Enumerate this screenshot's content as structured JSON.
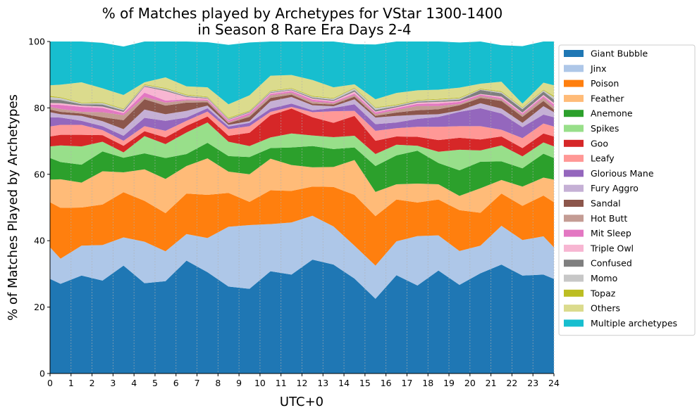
{
  "chart_data": {
    "type": "area",
    "stacked": true,
    "title_lines": [
      "% of Matches played by Archetypes for VStar 1300-1400",
      "in Season 8 Rare Era Days 2-4"
    ],
    "xlabel": "UTC+0",
    "ylabel": "% of Matches Played by Archetypes",
    "xlim": [
      0,
      24
    ],
    "ylim": [
      0,
      100
    ],
    "xticks": [
      "0",
      "1",
      "2",
      "3",
      "4",
      "5",
      "6",
      "7",
      "8",
      "9",
      "10",
      "11",
      "12",
      "13",
      "14",
      "15",
      "16",
      "17",
      "18",
      "19",
      "20",
      "21",
      "22",
      "23",
      "24"
    ],
    "yticks": [
      "0",
      "20",
      "40",
      "60",
      "80",
      "100"
    ],
    "grid": "vertical-dashed",
    "legend_position": "outside-right",
    "x": [
      0,
      0.5,
      1.5,
      2.5,
      3.5,
      4.5,
      5.5,
      6.5,
      7.5,
      8.5,
      9.5,
      10.5,
      11.5,
      12.5,
      13.5,
      14.5,
      15.5,
      16.5,
      17.5,
      18.5,
      19.5,
      20.5,
      21.5,
      22.5,
      23.5,
      24
    ],
    "series": [
      {
        "name": "Giant Bubble",
        "color": "#1f77b4",
        "values": [
          28.5,
          27,
          29.5,
          28,
          32.5,
          27.2,
          27.8,
          34,
          30.5,
          26.2,
          25.5,
          30.8,
          29.8,
          34.3,
          32.8,
          28.6,
          22.5,
          29.6,
          26.5,
          31,
          26.7,
          30.2,
          32.8,
          29.5,
          29.8,
          28.5
        ]
      },
      {
        "name": "Jinx",
        "color": "#aec7e8",
        "values": [
          9.5,
          7.6,
          9,
          10.7,
          8.5,
          12.5,
          9,
          8,
          10.3,
          18,
          19.2,
          14.2,
          15.7,
          13.2,
          11.5,
          9.9,
          10,
          10.2,
          14.9,
          10.6,
          10.2,
          8.3,
          11.7,
          10.7,
          11.5,
          9.5
        ]
      },
      {
        "name": "Poison",
        "color": "#ff7f0e",
        "values": [
          13.6,
          15.3,
          11.5,
          12.2,
          13.6,
          12.3,
          11.5,
          12.2,
          13,
          10.2,
          7,
          10.2,
          9.5,
          8.8,
          11.9,
          15.3,
          14.9,
          12.6,
          10.1,
          10.8,
          12.3,
          9.9,
          9.7,
          10.3,
          12.3,
          13.6
        ]
      },
      {
        "name": "Feather",
        "color": "#ffbb78",
        "values": [
          6.8,
          8.6,
          7.5,
          10,
          6,
          9.5,
          10.3,
          8.3,
          11,
          6.4,
          8.3,
          9.5,
          7.8,
          5.8,
          6,
          10.5,
          7.3,
          4.6,
          5.7,
          4.6,
          4.3,
          7.4,
          4.1,
          5.8,
          5.4,
          6.8
        ]
      },
      {
        "name": "Anemone",
        "color": "#2ca02c",
        "values": [
          6.5,
          5.2,
          5.4,
          6,
          4.4,
          4.8,
          6.3,
          3.6,
          4.7,
          4.7,
          5.2,
          3.2,
          5.3,
          6.4,
          5.4,
          3.8,
          7.8,
          8.7,
          9.9,
          6.4,
          7.7,
          8,
          5.6,
          5.5,
          7.2,
          6.5
        ]
      },
      {
        "name": "Spikes",
        "color": "#98df8a",
        "values": [
          3.5,
          5,
          5.5,
          2.9,
          1.6,
          5.2,
          4.2,
          6.5,
          6.1,
          4.3,
          3.3,
          3.2,
          4.2,
          3.2,
          3.6,
          3.5,
          3.6,
          3.2,
          1.5,
          3.4,
          6.2,
          3.4,
          4.8,
          3.6,
          3.4,
          3.5
        ]
      },
      {
        "name": "Goo",
        "color": "#d62728",
        "values": [
          3,
          3.2,
          3.5,
          2,
          2,
          1.5,
          2,
          2,
          1.8,
          1.8,
          4,
          6.7,
          7.5,
          5.5,
          4.3,
          6,
          4,
          2.5,
          2.7,
          3.5,
          3.6,
          3.3,
          2.7,
          2.5,
          2.7,
          3
        ]
      },
      {
        "name": "Leafy",
        "color": "#ff9896",
        "values": [
          3,
          3,
          3,
          1.5,
          1.5,
          1.5,
          2,
          1.5,
          1.5,
          2,
          2,
          1,
          0.5,
          1.5,
          3.5,
          1.5,
          3,
          2.5,
          3,
          4,
          3.5,
          4,
          2,
          3,
          3,
          3
        ]
      },
      {
        "name": "Glorious Mane",
        "color": "#9467bd",
        "values": [
          2.8,
          2.2,
          1.2,
          1.2,
          1.5,
          2.5,
          3,
          1,
          1,
          0.8,
          1,
          1,
          1,
          0.6,
          1,
          2,
          2,
          1.7,
          2.4,
          3,
          4.3,
          5.4,
          4.9,
          3.3,
          2.7,
          2.8
        ]
      },
      {
        "name": "Fury Aggro",
        "color": "#c5b0d5",
        "values": [
          1.5,
          1,
          1.5,
          1.5,
          2,
          2.5,
          2,
          2,
          0.8,
          0.5,
          0.5,
          2.2,
          2,
          1.5,
          0.5,
          1.5,
          2,
          2,
          1.2,
          0.8,
          0.4,
          1.5,
          1.5,
          1.3,
          2.5,
          1.5
        ]
      },
      {
        "name": "Sandal",
        "color": "#8c564b",
        "values": [
          0.8,
          0.7,
          0.7,
          1.2,
          2.7,
          3.1,
          2.6,
          2.5,
          1,
          0.5,
          1.3,
          1,
          0.7,
          0.5,
          0.5,
          0.8,
          0.5,
          1,
          1.4,
          1.5,
          1.6,
          1.6,
          2.3,
          1.8,
          1.6,
          0.8
        ]
      },
      {
        "name": "Hot Butt",
        "color": "#c49c94",
        "values": [
          0.8,
          0.9,
          0.5,
          1.5,
          1.5,
          0.7,
          0.9,
          0.7,
          0.5,
          0.3,
          0.5,
          0.8,
          0.6,
          0.6,
          0.4,
          0.5,
          0.5,
          0.8,
          1.3,
          1,
          0.4,
          0.6,
          0.5,
          0.6,
          1,
          0.8
        ]
      },
      {
        "name": "Mit Sleep",
        "color": "#e377c2",
        "values": [
          0.7,
          1.2,
          1.5,
          1.3,
          0.6,
          1.3,
          0.6,
          0.3,
          0.3,
          0.5,
          0.6,
          0.4,
          0.4,
          0.6,
          0.4,
          0.4,
          0.5,
          0.5,
          0.6,
          0.7,
          0.6,
          0.4,
          0.4,
          0.4,
          0.4,
          0.7
        ]
      },
      {
        "name": "Triple Owl",
        "color": "#f7b6d2",
        "values": [
          0.5,
          0.5,
          0.4,
          0.4,
          0.4,
          1.8,
          2.9,
          0.7,
          0.3,
          0.2,
          0.2,
          0.3,
          0.3,
          0.3,
          0.3,
          0.6,
          0.3,
          0.3,
          0.4,
          0.5,
          0.3,
          0.2,
          0.4,
          0.3,
          0.4,
          0.5
        ]
      },
      {
        "name": "Confused",
        "color": "#7f7f7f",
        "values": [
          1,
          1,
          0.4,
          0.6,
          0.4,
          0.2,
          0.3,
          0.2,
          0.2,
          0.2,
          0.2,
          0.2,
          0.2,
          0.3,
          0.3,
          0.4,
          0.5,
          0.3,
          0.3,
          0.3,
          0.4,
          1.2,
          1,
          1,
          1,
          1
        ]
      },
      {
        "name": "Momo",
        "color": "#c7c7c7",
        "values": [
          0.8,
          0.6,
          0.3,
          0.5,
          0.4,
          0.3,
          0.4,
          0.3,
          0.2,
          0.2,
          0.2,
          0.3,
          0.3,
          0.3,
          0.4,
          0.6,
          0.6,
          0.3,
          0.3,
          0.4,
          0.4,
          0.2,
          0.4,
          0.4,
          0.4,
          0.8
        ]
      },
      {
        "name": "Topaz",
        "color": "#bcbd22",
        "values": [
          0.3,
          0.2,
          0.2,
          0.2,
          0.2,
          0.2,
          0.2,
          0.2,
          0.2,
          0.2,
          0.2,
          0.2,
          0.2,
          0.2,
          0.2,
          0.2,
          0.2,
          0.2,
          0.2,
          0.2,
          0.2,
          0.2,
          0.2,
          0.2,
          0.2,
          0.3
        ]
      },
      {
        "name": "Others",
        "color": "#dbdb8d",
        "values": [
          3.2,
          3.8,
          6.1,
          4.2,
          4.1,
          0.6,
          3.2,
          2.5,
          2.8,
          4.1,
          4.6,
          4.5,
          3.9,
          4.8,
          3.2,
          1,
          2.4,
          3.5,
          2.9,
          2.8,
          3,
          1.5,
          2.9,
          1.1,
          2.1,
          3.2
        ]
      },
      {
        "name": "Multiple archetypes",
        "color": "#17becf",
        "values": [
          14,
          13.9,
          12.3,
          13.7,
          14.6,
          12.4,
          10.8,
          13.5,
          13.6,
          17.9,
          15.9,
          11.7,
          11.4,
          11.9,
          14.7,
          12.1,
          16.5,
          16,
          15.6,
          14.9,
          13.6,
          15.8,
          11,
          17.3,
          13.4,
          14
        ]
      }
    ]
  }
}
